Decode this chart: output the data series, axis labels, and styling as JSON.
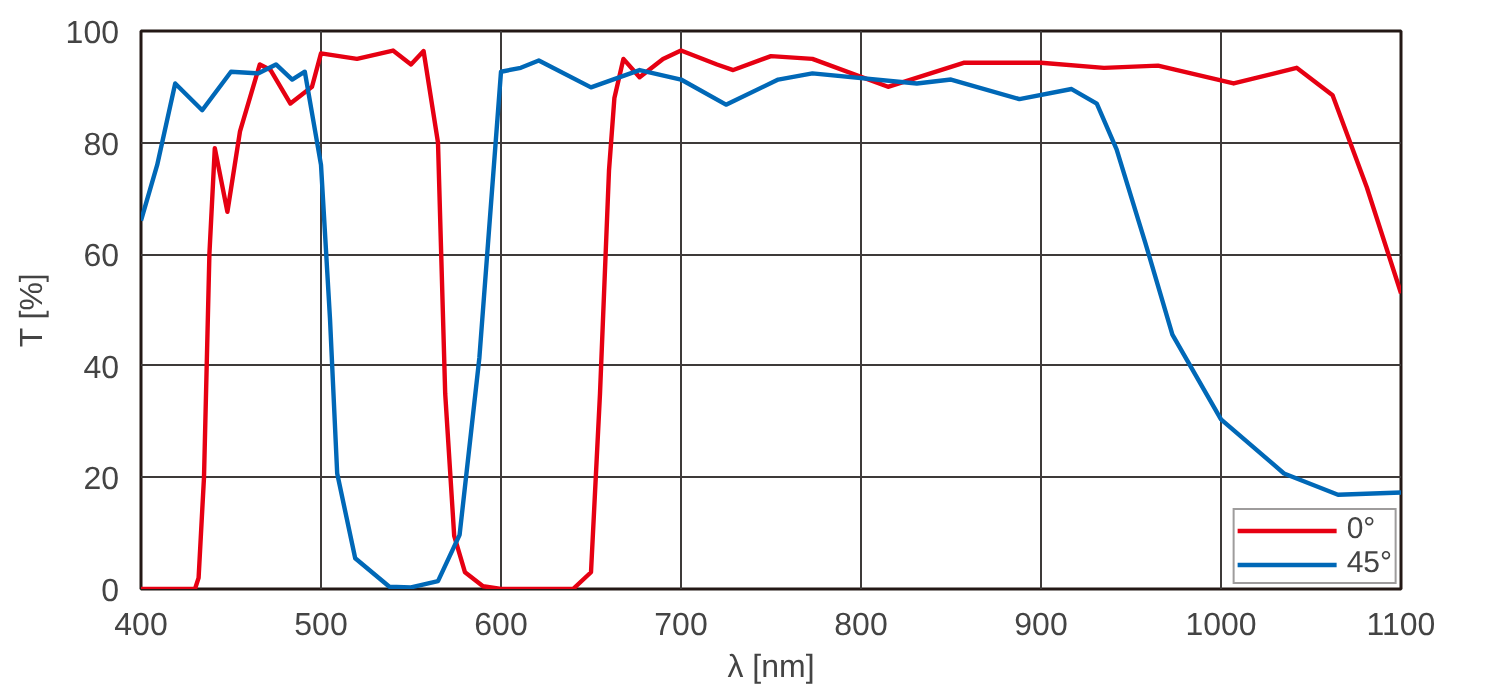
{
  "chart_data": {
    "type": "line",
    "xlabel": "λ [nm]",
    "ylabel": "T [%]",
    "xlim": [
      400,
      1100
    ],
    "ylim": [
      0,
      100
    ],
    "xticks": [
      400,
      500,
      600,
      700,
      800,
      900,
      1000,
      1100
    ],
    "yticks": [
      0,
      20,
      40,
      60,
      80,
      100
    ],
    "grid": true,
    "legend": "bottom right",
    "series": [
      {
        "name": "0°",
        "color": "#e60012",
        "x": [
          400,
          430,
          432,
          435,
          438,
          441,
          448,
          455,
          466,
          472,
          483,
          495,
          500,
          520,
          540,
          550,
          557,
          565,
          569,
          574,
          580,
          590,
          600,
          640,
          650,
          655,
          660,
          663,
          668,
          677,
          690,
          700,
          720,
          729,
          750,
          773,
          815,
          857,
          900,
          935,
          965,
          1007,
          1042,
          1062,
          1081,
          1100
        ],
        "values": [
          0,
          0,
          2,
          20,
          60,
          79,
          67.6,
          82,
          94,
          93,
          87,
          90,
          96,
          95,
          96.5,
          94,
          96.4,
          80,
          35,
          9.5,
          3,
          0.5,
          0,
          0,
          3,
          35,
          75,
          88,
          95,
          91.7,
          95,
          96.5,
          94,
          93,
          95.5,
          95,
          90,
          94.3,
          94.3,
          93.4,
          93.8,
          90.6,
          93.4,
          88.5,
          72,
          53
        ]
      },
      {
        "name": "45°",
        "color": "#0068b7",
        "x": [
          400,
          409,
          419,
          434,
          450,
          465,
          475,
          484,
          491,
          500,
          505,
          509,
          519,
          538,
          550,
          565,
          577,
          588,
          600,
          611,
          621,
          650,
          677,
          700,
          725,
          754,
          773,
          831,
          850,
          888,
          917,
          931,
          942,
          958,
          973,
          1000,
          1035,
          1065,
          1100
        ],
        "values": [
          66,
          76,
          90.6,
          85.8,
          92.7,
          92.4,
          94,
          91.3,
          92.7,
          76,
          48.4,
          20.7,
          5.5,
          0.4,
          0.3,
          1.4,
          9.7,
          41.5,
          92.7,
          93.4,
          94.7,
          89.9,
          93,
          91.3,
          86.8,
          91.3,
          92.4,
          90.6,
          91.3,
          87.8,
          89.6,
          87,
          78.8,
          62,
          45.6,
          30.4,
          20.7,
          16.9,
          17.3
        ]
      }
    ]
  }
}
